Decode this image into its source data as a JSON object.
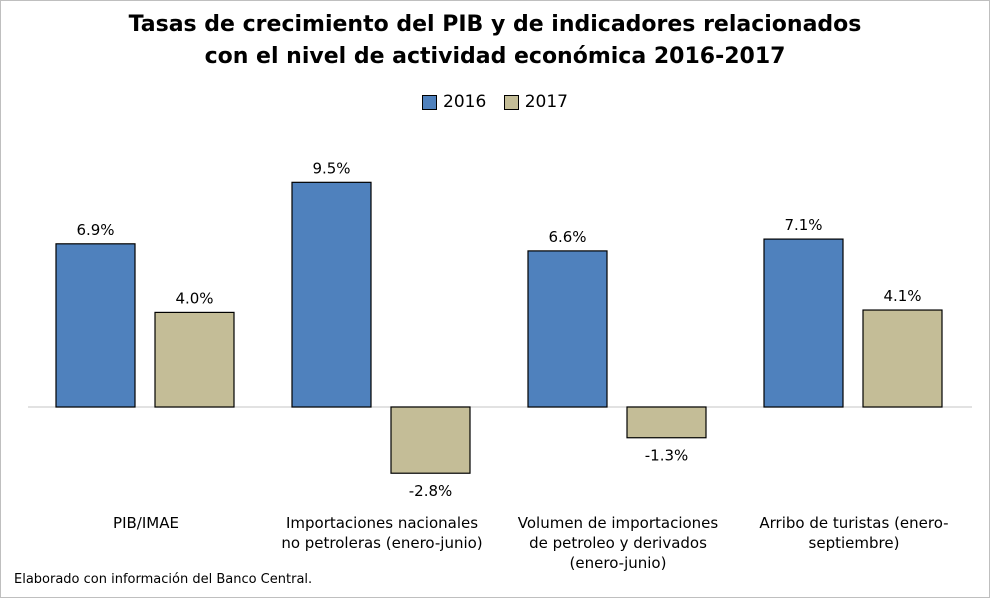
{
  "chart_data": {
    "type": "bar",
    "title": "Tasas de crecimiento del PIB y de indicadores relacionados",
    "subtitle": "con el nivel de actividad económica 2016-2017",
    "categories": [
      "PIB/IMAE",
      "Importaciones nacionales no petroleras (enero-junio)",
      "Volumen de importaciones de petroleo y derivados (enero-junio)",
      "Arribo de turistas (enero-septiembre)"
    ],
    "category_lines": [
      [
        "PIB/IMAE"
      ],
      [
        "Importaciones nacionales",
        "no petroleras (enero-junio)"
      ],
      [
        "Volumen de importaciones",
        "de petroleo y derivados",
        "(enero-junio)"
      ],
      [
        "Arribo de turistas (enero-",
        "septiembre)"
      ]
    ],
    "series": [
      {
        "name": "2016",
        "values": [
          6.9,
          9.5,
          6.6,
          7.1
        ],
        "labels": [
          "6.9%",
          "9.5%",
          "6.6%",
          "7.1%"
        ],
        "color": "#4f81bd"
      },
      {
        "name": "2017",
        "values": [
          4.0,
          -2.8,
          -1.3,
          4.1
        ],
        "labels": [
          "4.0%",
          "-2.8%",
          "-1.3%",
          "4.1%"
        ],
        "color": "#c4bd97"
      }
    ],
    "xlabel": "",
    "ylabel": "",
    "ylim": [
      -3.5,
      10.5
    ],
    "grid": false,
    "legend_position": "top-center"
  },
  "source_note": "Elaborado con información del Banco Central."
}
